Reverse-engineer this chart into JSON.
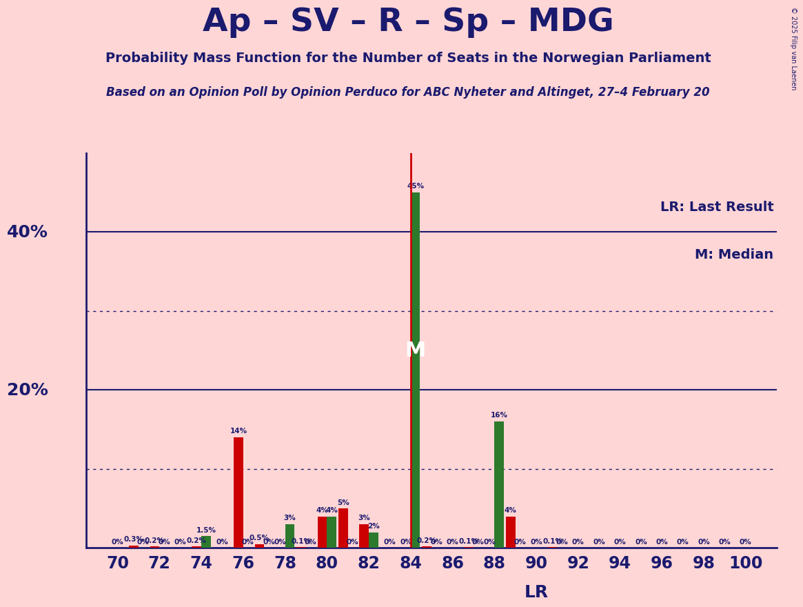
{
  "title": "Ap – SV – R – Sp – MDG",
  "subtitle1": "Probability Mass Function for the Number of Seats in the Norwegian Parliament",
  "subtitle2": "Based on an Opinion Poll by Opinion Perduco for ABC Nyheter and Altinget, 27–4 February 20",
  "copyright": "© 2025 Filip van Laenen",
  "background_color": "#ffd6d6",
  "title_color": "#1a1a6e",
  "text_color": "#1a1a6e",
  "red_color": "#cc0000",
  "green_color": "#2d7a2d",
  "seats": [
    70,
    71,
    72,
    73,
    74,
    75,
    76,
    77,
    78,
    79,
    80,
    81,
    82,
    83,
    84,
    85,
    86,
    87,
    88,
    89,
    90,
    91,
    92,
    93,
    94,
    95,
    96,
    97,
    98,
    99,
    100
  ],
  "red_values": [
    0.0,
    0.3,
    0.2,
    0.0,
    0.2,
    0.0,
    14.0,
    0.5,
    0.0,
    0.1,
    4.0,
    5.0,
    3.0,
    0.0,
    0.0,
    0.2,
    0.0,
    0.1,
    0.0,
    4.0,
    0.0,
    0.1,
    0.0,
    0.0,
    0.0,
    0.0,
    0.0,
    0.0,
    0.0,
    0.0,
    0.0
  ],
  "green_values": [
    0.0,
    0.0,
    0.0,
    0.0,
    1.5,
    0.0,
    0.0,
    0.0,
    3.0,
    0.0,
    4.0,
    0.0,
    2.0,
    0.0,
    45.0,
    0.0,
    0.0,
    0.0,
    16.0,
    0.0,
    0.0,
    0.0,
    0.0,
    0.0,
    0.0,
    0.0,
    0.0,
    0.0,
    0.0,
    0.0,
    0.0
  ],
  "median_seat": 84,
  "last_result_seat": 84,
  "lr_label_seat": 90,
  "ylim_max": 50,
  "bar_width": 0.45,
  "xlim_min": 68.5,
  "xlim_max": 101.5,
  "solid_hlines": [
    20,
    40
  ],
  "dotted_hlines": [
    10,
    30
  ],
  "ytick_labels": [
    [
      20,
      "20%"
    ],
    [
      40,
      "40%"
    ]
  ],
  "xtick_step": 2,
  "xtick_start": 70,
  "xtick_end": 100
}
